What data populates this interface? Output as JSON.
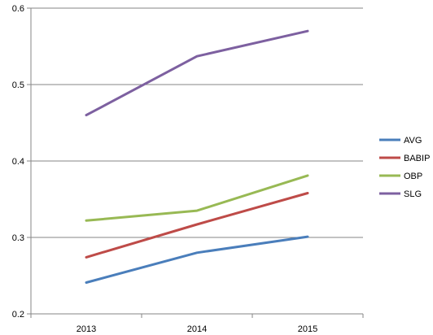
{
  "chart_data": {
    "type": "line",
    "categories": [
      "2013",
      "2014",
      "2015"
    ],
    "ylim": [
      0.2,
      0.6
    ],
    "y_ticks": [
      "0.2",
      "0.3",
      "0.4",
      "0.5",
      "0.6"
    ],
    "grid": "horizontal",
    "legend_position": "right",
    "title": "",
    "xlabel": "",
    "ylabel": "",
    "series": [
      {
        "name": "AVG",
        "color": "#4a7ebb",
        "values": [
          0.241,
          0.28,
          0.301
        ]
      },
      {
        "name": "BABIP",
        "color": "#be4b48",
        "values": [
          0.274,
          0.317,
          0.358
        ]
      },
      {
        "name": "OBP",
        "color": "#98b954",
        "values": [
          0.322,
          0.335,
          0.381
        ]
      },
      {
        "name": "SLG",
        "color": "#7d60a0",
        "values": [
          0.46,
          0.537,
          0.57
        ]
      }
    ]
  }
}
